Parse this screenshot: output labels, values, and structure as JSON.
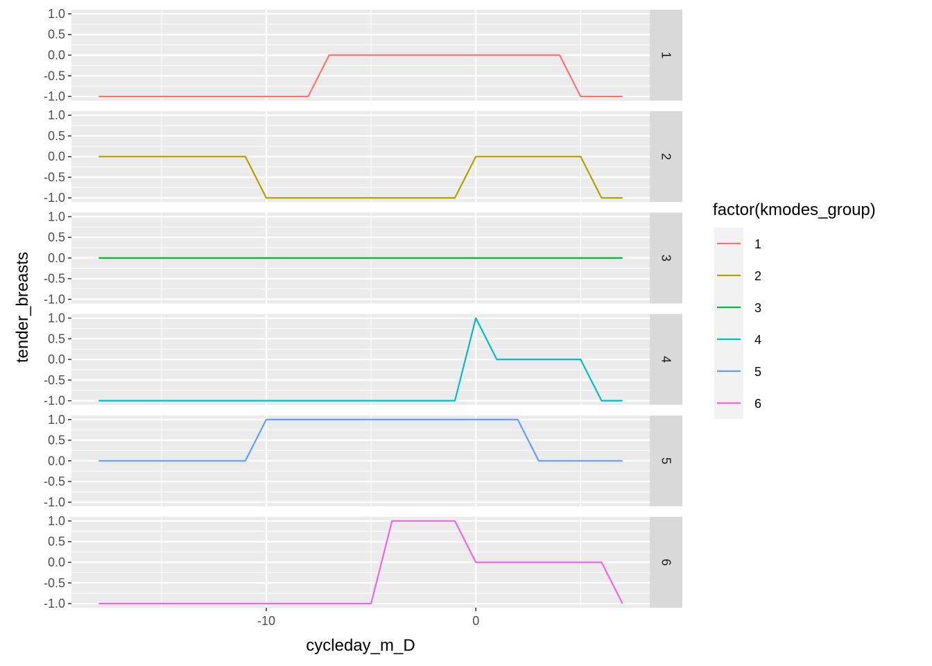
{
  "chart_data": {
    "type": "line",
    "xlabel": "cycleday_m_D",
    "ylabel": "tender_breasts",
    "xlim": [
      -19.3,
      8.3
    ],
    "ylim": [
      -1.1,
      1.1
    ],
    "x_ticks": [
      -10,
      0
    ],
    "x_tick_labels": [
      "-10",
      "0"
    ],
    "y_ticks": [
      1,
      0.5,
      0,
      -0.5,
      -1
    ],
    "y_tick_labels": [
      "1.0",
      "0.5",
      "0.0",
      "-0.5",
      "-1.0"
    ],
    "legend": {
      "title": "factor(kmodes_group)",
      "position": "right"
    },
    "grid": true,
    "x": [
      -18,
      -17,
      -16,
      -15,
      -14,
      -13,
      -12,
      -11,
      -10,
      -9,
      -8,
      -7,
      -6,
      -5,
      -4,
      -3,
      -2,
      -1,
      0,
      1,
      2,
      3,
      4,
      5,
      6,
      7
    ],
    "series": [
      {
        "name": "1",
        "color": "#F8766D",
        "values": [
          -1,
          -1,
          -1,
          -1,
          -1,
          -1,
          -1,
          -1,
          -1,
          -1,
          -1,
          0,
          0,
          0,
          0,
          0,
          0,
          0,
          0,
          0,
          0,
          0,
          0,
          -1,
          -1,
          -1
        ]
      },
      {
        "name": "2",
        "color": "#B79F00",
        "values": [
          0,
          0,
          0,
          0,
          0,
          0,
          0,
          0,
          -1,
          -1,
          -1,
          -1,
          -1,
          -1,
          -1,
          -1,
          -1,
          -1,
          0,
          0,
          0,
          0,
          0,
          0,
          -1,
          -1
        ]
      },
      {
        "name": "3",
        "color": "#00BA38",
        "values": [
          0,
          0,
          0,
          0,
          0,
          0,
          0,
          0,
          0,
          0,
          0,
          0,
          0,
          0,
          0,
          0,
          0,
          0,
          0,
          0,
          0,
          0,
          0,
          0,
          0,
          0
        ]
      },
      {
        "name": "4",
        "color": "#00BFC4",
        "values": [
          -1,
          -1,
          -1,
          -1,
          -1,
          -1,
          -1,
          -1,
          -1,
          -1,
          -1,
          -1,
          -1,
          -1,
          -1,
          -1,
          -1,
          -1,
          1,
          0,
          0,
          0,
          0,
          0,
          -1,
          -1
        ]
      },
      {
        "name": "5",
        "color": "#619CFF",
        "values": [
          0,
          0,
          0,
          0,
          0,
          0,
          0,
          0,
          1,
          1,
          1,
          1,
          1,
          1,
          1,
          1,
          1,
          1,
          1,
          1,
          1,
          0,
          0,
          0,
          0,
          0
        ]
      },
      {
        "name": "6",
        "color": "#F564E3",
        "values": [
          -1,
          -1,
          -1,
          -1,
          -1,
          -1,
          -1,
          -1,
          -1,
          -1,
          -1,
          -1,
          -1,
          -1,
          1,
          1,
          1,
          1,
          0,
          0,
          0,
          0,
          0,
          0,
          0,
          -1
        ]
      }
    ]
  }
}
